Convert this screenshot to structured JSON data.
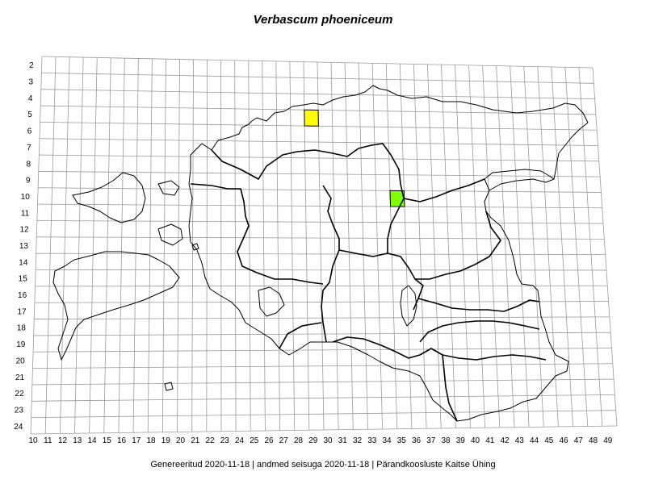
{
  "title": "Verbascum phoeniceum",
  "footer": "Genereeritud 2020-11-18  |  andmed seisuga 2020-11-18  |  Pärandkoosluste Kaitse Ühing",
  "grid": {
    "x_labels": [
      "10",
      "11",
      "12",
      "13",
      "14",
      "15",
      "16",
      "17",
      "18",
      "19",
      "20",
      "21",
      "22",
      "23",
      "24",
      "25",
      "26",
      "27",
      "28",
      "29",
      "30",
      "31",
      "32",
      "33",
      "34",
      "35",
      "36",
      "37",
      "38",
      "39",
      "40",
      "41",
      "42",
      "43",
      "44",
      "45",
      "46",
      "47",
      "48",
      "49"
    ],
    "y_labels": [
      "2",
      "3",
      "4",
      "5",
      "6",
      "7",
      "8",
      "9",
      "10",
      "11",
      "12",
      "13",
      "14",
      "15",
      "16",
      "17",
      "18",
      "19",
      "20",
      "21",
      "22",
      "23",
      "24"
    ]
  },
  "occurrences": [
    {
      "col": "29",
      "row": "5",
      "color": "#ffff00"
    },
    {
      "col": "35",
      "row": "10",
      "color": "#7fff00"
    }
  ],
  "colors": {
    "grid": "#9a9a9a",
    "outline": "#000000"
  }
}
